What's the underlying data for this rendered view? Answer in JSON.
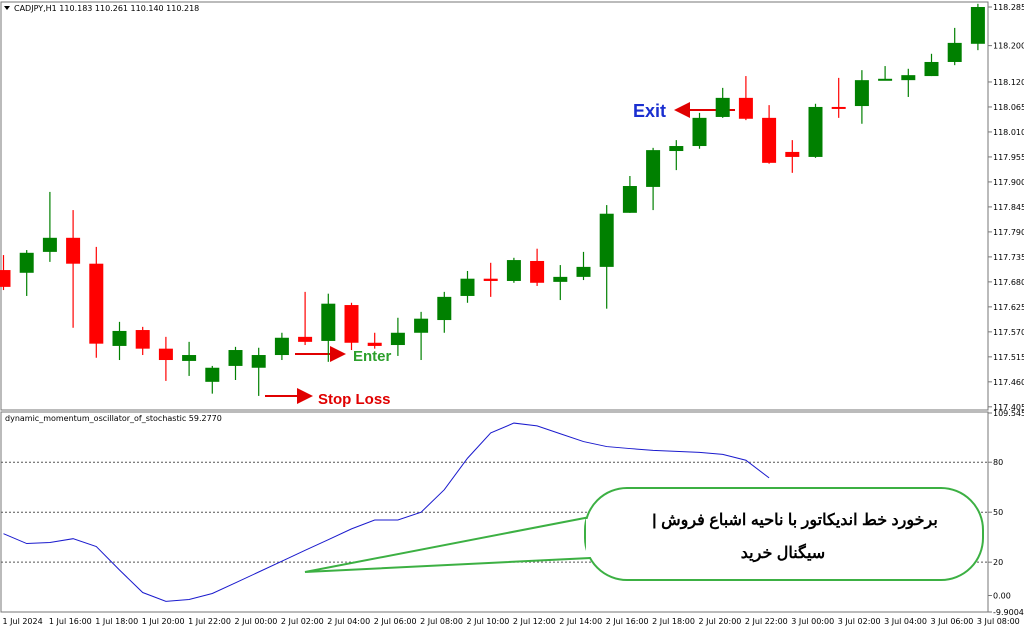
{
  "chart_data": [
    {
      "type": "candlestick",
      "title": "CADJPY,H1  110.183 110.261 110.140 110.218",
      "open": [
        117.706,
        117.7,
        117.746,
        117.777,
        117.72,
        117.539,
        117.574,
        117.533,
        117.506,
        117.46,
        117.495,
        117.491,
        117.519,
        117.559,
        117.55,
        117.629,
        117.546,
        117.541,
        117.568,
        117.596,
        117.649,
        117.687,
        117.682,
        117.726,
        117.68,
        117.691,
        117.713,
        117.832,
        117.889,
        117.968,
        117.979,
        118.043,
        118.085,
        118.041,
        117.966,
        117.955,
        118.065,
        118.067,
        118.124,
        118.124,
        118.133,
        118.164,
        118.204
      ],
      "high": [
        117.739,
        117.75,
        117.878,
        117.838,
        117.757,
        117.592,
        117.581,
        117.559,
        117.548,
        117.495,
        117.537,
        117.535,
        117.568,
        117.658,
        117.654,
        117.634,
        117.568,
        117.601,
        117.614,
        117.658,
        117.704,
        117.722,
        117.733,
        117.753,
        117.717,
        117.746,
        117.849,
        117.913,
        117.975,
        117.992,
        118.052,
        118.107,
        118.133,
        118.069,
        117.992,
        118.072,
        118.129,
        118.146,
        118.155,
        118.149,
        118.182,
        118.239,
        118.292
      ],
      "low": [
        117.662,
        117.649,
        117.724,
        117.579,
        117.513,
        117.508,
        117.519,
        117.462,
        117.473,
        117.434,
        117.464,
        117.429,
        117.508,
        117.541,
        117.504,
        117.53,
        117.533,
        117.517,
        117.508,
        117.568,
        117.634,
        117.647,
        117.678,
        117.671,
        117.64,
        117.684,
        117.621,
        117.832,
        117.838,
        117.926,
        117.973,
        118.041,
        118.036,
        117.94,
        117.92,
        117.953,
        118.041,
        118.028,
        118.124,
        118.087,
        118.133,
        118.157,
        118.19
      ],
      "close": [
        117.669,
        117.744,
        117.777,
        117.72,
        117.544,
        117.572,
        117.533,
        117.508,
        117.519,
        117.491,
        117.53,
        117.519,
        117.557,
        117.548,
        117.632,
        117.546,
        117.539,
        117.568,
        117.599,
        117.647,
        117.687,
        117.682,
        117.728,
        117.678,
        117.691,
        117.713,
        117.83,
        117.891,
        117.97,
        117.979,
        118.041,
        118.085,
        118.039,
        117.942,
        117.955,
        118.065,
        118.063,
        118.124,
        118.127,
        118.135,
        118.164,
        118.206,
        118.285
      ],
      "up_color": "#008000",
      "down_color": "#ff0000",
      "ylim": [
        117.398,
        118.296
      ],
      "yticks": [
        118.285,
        {
          "value": 118.2,
          "label": "118.200"
        },
        {
          "value": 118.12,
          "label": "118.120"
        },
        118.065,
        {
          "value": 118.01,
          "label": "118.010"
        },
        117.955,
        {
          "value": 117.9,
          "label": "117.900"
        },
        117.845,
        {
          "value": 117.79,
          "label": "117.790"
        },
        117.735,
        {
          "value": 117.68,
          "label": "117.680"
        },
        117.625,
        {
          "value": 117.57,
          "label": "117.570"
        },
        117.515,
        {
          "value": 117.46,
          "label": "117.460"
        },
        117.405
      ],
      "annotations": [
        "Exit",
        "Enter",
        "Stop Loss"
      ]
    },
    {
      "type": "line",
      "title": "dynamic_momentum_oscillator_of_stochastic 59.2770",
      "categories": [
        "1 Jul 2024",
        null,
        "1 Jul 16:00",
        null,
        "1 Jul 18:00",
        null,
        "1 Jul 20:00",
        null,
        "1 Jul 22:00",
        null,
        "2 Jul 00:00",
        null,
        "2 Jul 02:00",
        null,
        "2 Jul 04:00",
        null,
        "2 Jul 06:00",
        null,
        "2 Jul 08:00",
        null,
        "2 Jul 10:00",
        null,
        "2 Jul 12:00",
        null,
        "2 Jul 14:00",
        null,
        "2 Jul 16:00",
        null,
        "2 Jul 18:00",
        null,
        "2 Jul 20:00",
        null,
        "2 Jul 22:00",
        null,
        "3 Jul 00:00",
        null,
        "3 Jul 02:00",
        null,
        "3 Jul 04:00",
        null,
        "3 Jul 06:00",
        null,
        "3 Jul 08:00"
      ],
      "values": [
        37.1,
        31.2,
        31.8,
        34.1,
        29.4,
        15.3,
        1.8,
        -3.5,
        -2.4,
        1.2,
        7.6,
        14.1,
        20.6,
        27.1,
        33.5,
        40.0,
        45.3,
        45.3,
        50.0,
        63.5,
        82.4,
        97.6,
        103.5,
        101.8,
        97.1,
        92.4,
        89.4,
        88.2,
        87.1,
        86.5,
        85.9,
        84.7,
        81.2,
        70.6,
        null,
        null,
        null,
        null,
        null,
        null,
        null,
        null,
        null
      ],
      "color": "#1a1acd",
      "ylim": [
        -9.9004,
        109.5459
      ],
      "yticks": [
        109.5459,
        80,
        50,
        20,
        {
          "value": 0,
          "label": "0.00"
        },
        -9.9004
      ],
      "levels": [
        80,
        50,
        20
      ],
      "callout": [
        "برخورد خط اندیکاتور با ناحیه اشباع فروش |",
        "سیگنال خرید"
      ]
    }
  ]
}
